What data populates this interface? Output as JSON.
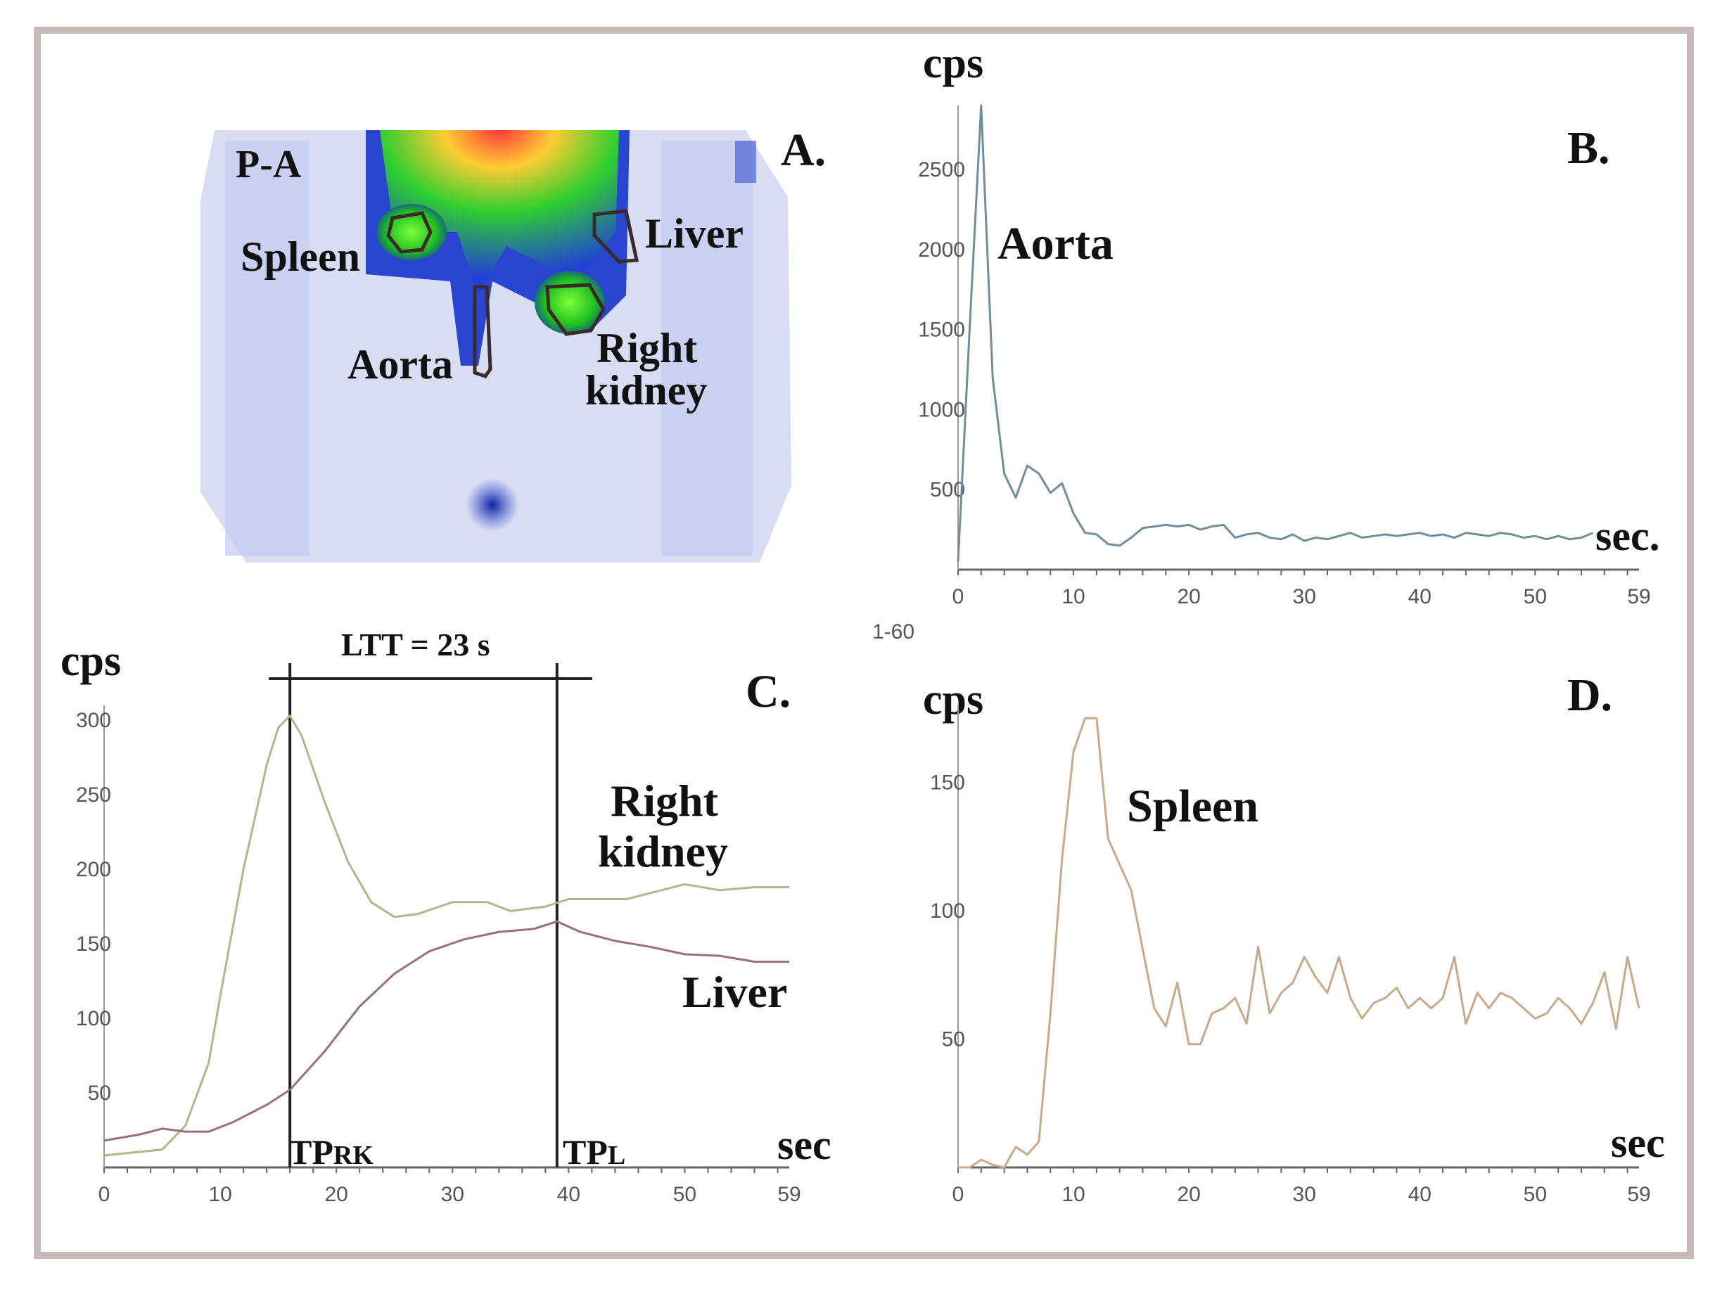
{
  "panels": {
    "A": {
      "letter": "A.",
      "view": "P-A",
      "regions": [
        "Spleen",
        "Liver",
        "Aorta",
        "Right",
        "kidney"
      ]
    },
    "C": {
      "ltt": "LTT = 23 s",
      "tp_rk_main": "TP",
      "tp_rk_sub": "RK",
      "tp_l_main": "TP",
      "tp_l_sub": "L"
    }
  },
  "colors": {
    "frame": "#c8b8b8",
    "aorta_curve": "#6f8d9d",
    "kidney_curve": "#b5b58c",
    "liver_curve": "#9b6f7a",
    "spleen_curve": "#c9a98a"
  },
  "chart_data": [
    {
      "panel": "B.",
      "type": "line",
      "ylabel": "cps",
      "xlabel": "sec.",
      "xlim": [
        0,
        59
      ],
      "ylim": [
        0,
        2900
      ],
      "xticks": [
        "0",
        "10",
        "20",
        "30",
        "40",
        "50",
        "59"
      ],
      "yticks": [
        "500",
        "1000",
        "1500",
        "2000",
        "2500"
      ],
      "extra_label": "1-60",
      "series": [
        {
          "name": "Aorta",
          "x": [
            0,
            1,
            2,
            3,
            4,
            5,
            6,
            7,
            8,
            9,
            10,
            11,
            12,
            13,
            14,
            15,
            16,
            17,
            18,
            19,
            20,
            21,
            22,
            23,
            24,
            25,
            26,
            27,
            28,
            29,
            30,
            31,
            32,
            33,
            34,
            35,
            36,
            37,
            38,
            39,
            40,
            41,
            42,
            43,
            44,
            45,
            46,
            47,
            48,
            49,
            50,
            51,
            52,
            53,
            54,
            55
          ],
          "y": [
            50,
            1500,
            2900,
            1200,
            600,
            450,
            650,
            600,
            480,
            540,
            350,
            230,
            220,
            160,
            150,
            200,
            260,
            270,
            280,
            270,
            280,
            250,
            270,
            280,
            200,
            220,
            230,
            200,
            190,
            220,
            180,
            200,
            190,
            210,
            230,
            200,
            210,
            220,
            210,
            220,
            230,
            210,
            220,
            200,
            230,
            220,
            210,
            230,
            220,
            200,
            210,
            190,
            210,
            190,
            200,
            230
          ]
        }
      ]
    },
    {
      "panel": "C.",
      "type": "line",
      "ylabel": "cps",
      "xlabel": "sec",
      "xlim": [
        0,
        59
      ],
      "ylim": [
        0,
        310
      ],
      "xticks": [
        "0",
        "10",
        "20",
        "30",
        "40",
        "50",
        "59"
      ],
      "yticks": [
        "50",
        "100",
        "150",
        "200",
        "250",
        "300"
      ],
      "markers": [
        16,
        39
      ],
      "series": [
        {
          "name": "Right kidney",
          "x": [
            0,
            5,
            7,
            9,
            10,
            12,
            14,
            15,
            16,
            17,
            19,
            21,
            23,
            25,
            27,
            30,
            33,
            35,
            38,
            40,
            45,
            50,
            53,
            56,
            59
          ],
          "y": [
            8,
            12,
            28,
            70,
            115,
            200,
            270,
            295,
            303,
            290,
            245,
            205,
            178,
            168,
            170,
            178,
            178,
            172,
            175,
            180,
            180,
            190,
            186,
            188,
            188
          ],
          "labels": [
            "Right",
            "kidney"
          ]
        },
        {
          "name": "Liver",
          "x": [
            0,
            3,
            5,
            7,
            9,
            11,
            14,
            16,
            19,
            22,
            25,
            28,
            31,
            34,
            37,
            39,
            41,
            44,
            47,
            50,
            53,
            56,
            59
          ],
          "y": [
            18,
            22,
            26,
            24,
            24,
            30,
            42,
            52,
            78,
            108,
            130,
            145,
            153,
            158,
            160,
            165,
            158,
            152,
            148,
            143,
            142,
            138,
            138
          ],
          "labels": [
            "Liver"
          ]
        }
      ]
    },
    {
      "panel": "D.",
      "type": "line",
      "ylabel": "cps",
      "xlabel": "sec",
      "xlim": [
        0,
        59
      ],
      "ylim": [
        0,
        180
      ],
      "xticks": [
        "0",
        "10",
        "20",
        "30",
        "40",
        "50",
        "59"
      ],
      "yticks": [
        "50",
        "100",
        "150"
      ],
      "series": [
        {
          "name": "Spleen",
          "x": [
            0,
            1,
            2,
            3,
            4,
            5,
            6,
            7,
            8,
            9,
            10,
            11,
            12,
            13,
            14,
            15,
            16,
            17,
            18,
            19,
            20,
            21,
            22,
            23,
            24,
            25,
            26,
            27,
            28,
            29,
            30,
            31,
            32,
            33,
            34,
            35,
            36,
            37,
            38,
            39,
            40,
            41,
            42,
            43,
            44,
            45,
            46,
            47,
            48,
            49,
            50,
            51,
            52,
            53,
            54,
            55,
            56,
            57,
            58,
            59
          ],
          "y": [
            0,
            0,
            3,
            1,
            0,
            8,
            5,
            10,
            60,
            120,
            162,
            175,
            175,
            128,
            118,
            108,
            85,
            62,
            55,
            72,
            48,
            48,
            60,
            62,
            66,
            56,
            86,
            60,
            68,
            72,
            82,
            74,
            68,
            82,
            66,
            58,
            64,
            66,
            70,
            62,
            66,
            62,
            66,
            82,
            56,
            68,
            62,
            68,
            66,
            62,
            58,
            60,
            66,
            62,
            56,
            64,
            76,
            54,
            82,
            62
          ],
          "labels": [
            "Spleen"
          ]
        }
      ]
    }
  ]
}
